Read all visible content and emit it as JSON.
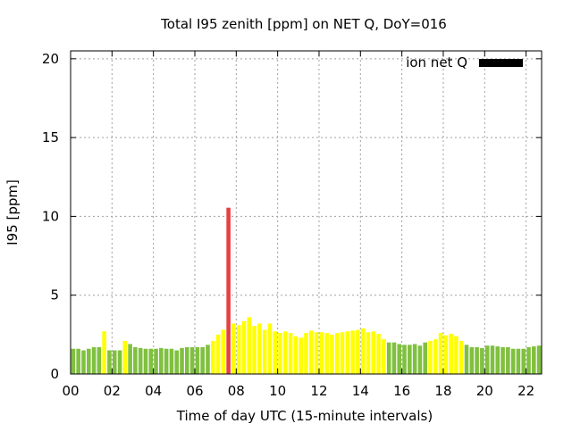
{
  "chart_data": {
    "type": "bar",
    "title": "Total I95 zenith [ppm] on NET Q, DoY=016",
    "xlabel": "Time of day UTC (15-minute intervals)",
    "ylabel": "I95 [ppm]",
    "xlim": [
      0,
      22.75
    ],
    "ylim": [
      0,
      20.5
    ],
    "grid": true,
    "x_ticks": [
      "00",
      "02",
      "04",
      "06",
      "08",
      "10",
      "12",
      "14",
      "16",
      "18",
      "20",
      "22"
    ],
    "x_tick_values": [
      0,
      2,
      4,
      6,
      8,
      10,
      12,
      14,
      16,
      18,
      20,
      22
    ],
    "y_ticks": [
      "0",
      "5",
      "10",
      "15",
      "20"
    ],
    "y_tick_values": [
      0,
      5,
      10,
      15,
      20
    ],
    "interval_hours": 0.25,
    "legend": {
      "label": "ion net Q",
      "placement": "top-right",
      "color": "#000000"
    },
    "colors": {
      "g": "#80c040",
      "y": "#ffff00",
      "r": "#e84040"
    },
    "values": [
      1.6,
      1.6,
      1.5,
      1.6,
      1.7,
      1.7,
      2.7,
      1.5,
      1.5,
      1.5,
      2.1,
      1.9,
      1.7,
      1.65,
      1.6,
      1.6,
      1.6,
      1.65,
      1.6,
      1.6,
      1.5,
      1.65,
      1.7,
      1.7,
      1.7,
      1.7,
      1.85,
      2.1,
      2.5,
      2.8,
      10.55,
      3.2,
      3.1,
      3.35,
      3.6,
      3.05,
      3.2,
      2.8,
      3.2,
      2.7,
      2.6,
      2.7,
      2.6,
      2.4,
      2.3,
      2.6,
      2.75,
      2.65,
      2.65,
      2.6,
      2.5,
      2.6,
      2.65,
      2.7,
      2.75,
      2.8,
      2.9,
      2.65,
      2.7,
      2.55,
      2.2,
      2.0,
      2.0,
      1.9,
      1.85,
      1.85,
      1.9,
      1.8,
      2.0,
      2.1,
      2.2,
      2.6,
      2.45,
      2.55,
      2.4,
      2.1,
      1.85,
      1.7,
      1.7,
      1.65,
      1.8,
      1.8,
      1.75,
      1.7,
      1.7,
      1.6,
      1.6,
      1.6,
      1.7,
      1.75,
      1.8,
      1.65
    ],
    "levels": [
      "g",
      "g",
      "g",
      "g",
      "g",
      "g",
      "y",
      "g",
      "g",
      "g",
      "y",
      "g",
      "g",
      "g",
      "g",
      "g",
      "g",
      "g",
      "g",
      "g",
      "g",
      "g",
      "g",
      "g",
      "g",
      "g",
      "g",
      "y",
      "y",
      "y",
      "r",
      "y",
      "y",
      "y",
      "y",
      "y",
      "y",
      "y",
      "y",
      "y",
      "y",
      "y",
      "y",
      "y",
      "y",
      "y",
      "y",
      "y",
      "y",
      "y",
      "y",
      "y",
      "y",
      "y",
      "y",
      "y",
      "y",
      "y",
      "y",
      "y",
      "y",
      "g",
      "g",
      "g",
      "g",
      "g",
      "g",
      "g",
      "g",
      "y",
      "y",
      "y",
      "y",
      "y",
      "y",
      "y",
      "g",
      "g",
      "g",
      "g",
      "g",
      "g",
      "g",
      "g",
      "g",
      "g",
      "g",
      "g",
      "g",
      "g",
      "g",
      "g"
    ]
  }
}
